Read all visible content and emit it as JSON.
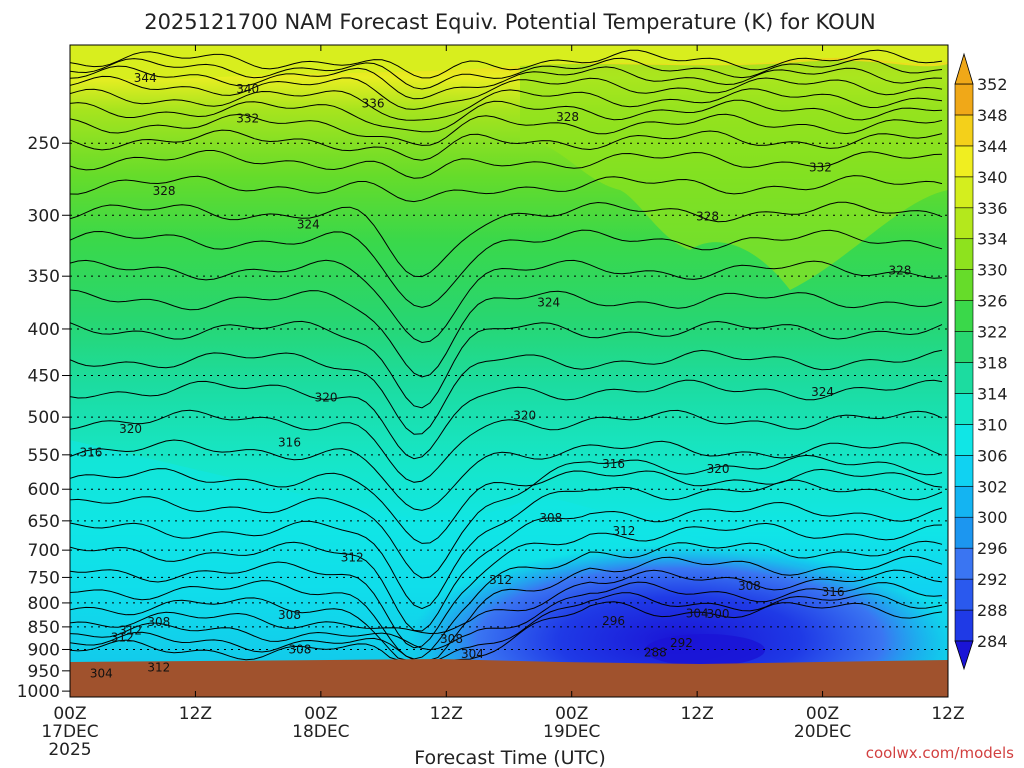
{
  "chart_data": {
    "type": "heatmap",
    "title": "2025121700 NAM Forecast Equiv. Potential Temperature (K) for KOUN",
    "xlabel": "Forecast Time (UTC)",
    "ylabel": "",
    "y_scale": "pressure (hPa), reversed",
    "ylim": [
      1015,
      195
    ],
    "y_ticks": [
      250,
      300,
      350,
      400,
      450,
      500,
      550,
      600,
      650,
      700,
      750,
      800,
      850,
      900,
      950,
      1000
    ],
    "x_range_hours": [
      0,
      84
    ],
    "x_ticks": [
      {
        "hour": 0,
        "label": "00Z",
        "sub": "17DEC",
        "year": "2025"
      },
      {
        "hour": 12,
        "label": "12Z",
        "sub": "",
        "year": ""
      },
      {
        "hour": 24,
        "label": "00Z",
        "sub": "18DEC",
        "year": ""
      },
      {
        "hour": 36,
        "label": "12Z",
        "sub": "",
        "year": ""
      },
      {
        "hour": 48,
        "label": "00Z",
        "sub": "19DEC",
        "year": ""
      },
      {
        "hour": 60,
        "label": "12Z",
        "sub": "",
        "year": ""
      },
      {
        "hour": 72,
        "label": "00Z",
        "sub": "20DEC",
        "year": ""
      },
      {
        "hour": 84,
        "label": "12Z",
        "sub": "",
        "year": ""
      }
    ],
    "colorbar": {
      "levels": [
        284,
        288,
        292,
        296,
        300,
        302,
        306,
        310,
        314,
        318,
        322,
        326,
        330,
        334,
        336,
        340,
        344,
        348,
        352
      ],
      "colors": [
        "#1a14d6",
        "#1f3ae6",
        "#2a59ee",
        "#3a75f2",
        "#1c96f0",
        "#14b4f2",
        "#10d2f2",
        "#10e6e6",
        "#16e6c8",
        "#1cdca0",
        "#28d670",
        "#3ad84a",
        "#66dc2a",
        "#8ee21e",
        "#b4e81c",
        "#d4ee1e",
        "#f0ee20",
        "#f4d01a",
        "#f0a818"
      ]
    },
    "surface_color": "#a0522d",
    "contour_labels": [
      {
        "t": 7.2,
        "p": 212,
        "text": "344"
      },
      {
        "t": 17.0,
        "p": 218,
        "text": "340"
      },
      {
        "t": 29.0,
        "p": 226,
        "text": "336"
      },
      {
        "t": 17.0,
        "p": 235,
        "text": "332"
      },
      {
        "t": 47.6,
        "p": 234,
        "text": "328"
      },
      {
        "t": 9.0,
        "p": 282,
        "text": "328"
      },
      {
        "t": 22.8,
        "p": 307,
        "text": "324"
      },
      {
        "t": 71.8,
        "p": 266,
        "text": "332"
      },
      {
        "t": 61.0,
        "p": 301,
        "text": "328"
      },
      {
        "t": 79.4,
        "p": 345,
        "text": "328"
      },
      {
        "t": 45.8,
        "p": 374,
        "text": "324"
      },
      {
        "t": 24.5,
        "p": 476,
        "text": "320"
      },
      {
        "t": 5.8,
        "p": 515,
        "text": "320"
      },
      {
        "t": 43.5,
        "p": 498,
        "text": "320"
      },
      {
        "t": 72.0,
        "p": 469,
        "text": "324"
      },
      {
        "t": 2.0,
        "p": 547,
        "text": "316"
      },
      {
        "t": 21.0,
        "p": 533,
        "text": "316"
      },
      {
        "t": 52.0,
        "p": 563,
        "text": "316"
      },
      {
        "t": 62.0,
        "p": 570,
        "text": "320"
      },
      {
        "t": 46.0,
        "p": 645,
        "text": "308"
      },
      {
        "t": 53.0,
        "p": 667,
        "text": "312"
      },
      {
        "t": 27.0,
        "p": 713,
        "text": "312"
      },
      {
        "t": 41.2,
        "p": 755,
        "text": "312"
      },
      {
        "t": 65.0,
        "p": 766,
        "text": "308"
      },
      {
        "t": 73.0,
        "p": 778,
        "text": "316"
      },
      {
        "t": 21.0,
        "p": 825,
        "text": "308"
      },
      {
        "t": 8.5,
        "p": 840,
        "text": "308"
      },
      {
        "t": 5.8,
        "p": 858,
        "text": "312"
      },
      {
        "t": 5.0,
        "p": 873,
        "text": "312"
      },
      {
        "t": 22.0,
        "p": 900,
        "text": "308"
      },
      {
        "t": 36.5,
        "p": 877,
        "text": "308"
      },
      {
        "t": 38.5,
        "p": 910,
        "text": "304"
      },
      {
        "t": 60.0,
        "p": 822,
        "text": "304"
      },
      {
        "t": 62.0,
        "p": 823,
        "text": "300"
      },
      {
        "t": 52.0,
        "p": 837,
        "text": "296"
      },
      {
        "t": 58.5,
        "p": 885,
        "text": "292"
      },
      {
        "t": 56.0,
        "p": 907,
        "text": "288"
      },
      {
        "t": 8.5,
        "p": 942,
        "text": "312"
      },
      {
        "t": 3.0,
        "p": 956,
        "text": "304"
      }
    ]
  },
  "credit": "coolwx.com/models"
}
